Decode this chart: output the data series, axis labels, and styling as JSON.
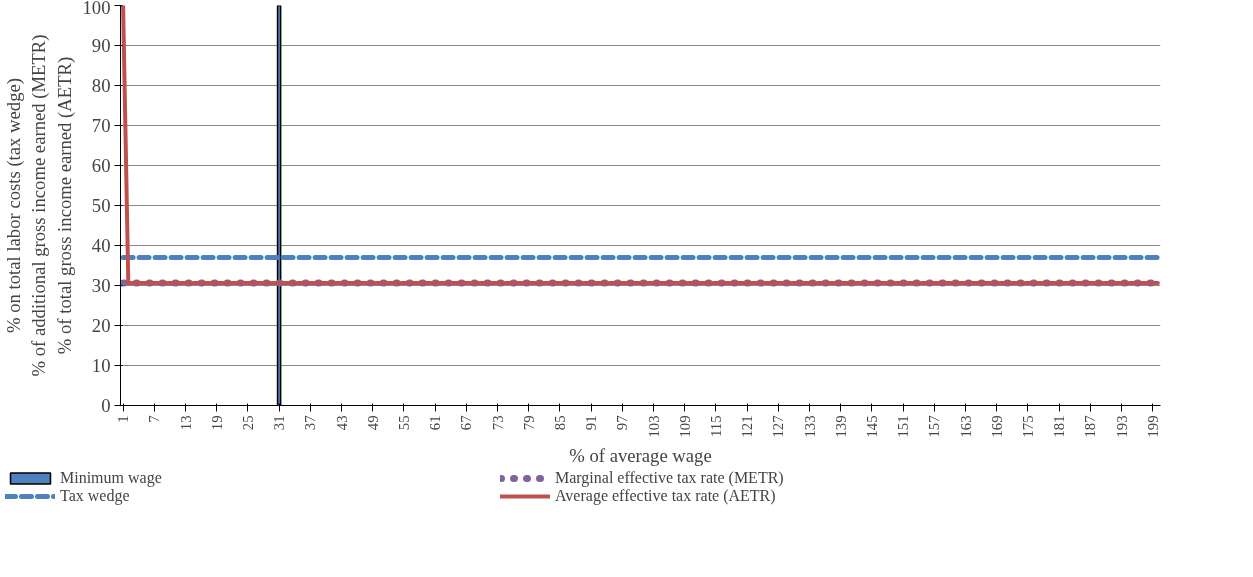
{
  "chart_data": {
    "type": "line",
    "xlabel": "% of average wage",
    "ylabel": "% on total labor costs (tax wedge)\n% of additional gross income earned (METR)\n% of total gross income earned (AETR)",
    "xlim": [
      0.5,
      200.5
    ],
    "xticks": [
      1,
      7,
      13,
      19,
      25,
      31,
      37,
      43,
      49,
      55,
      61,
      67,
      73,
      79,
      85,
      91,
      97,
      103,
      109,
      115,
      121,
      127,
      133,
      139,
      145,
      151,
      157,
      163,
      169,
      175,
      181,
      187,
      193,
      199
    ],
    "ylim": [
      0,
      100
    ],
    "yticks": [
      0,
      10,
      20,
      30,
      40,
      50,
      60,
      70,
      80,
      90,
      100
    ],
    "grid": "y",
    "legend": "bottom",
    "series": [
      {
        "name": "Minimum wage",
        "type": "bar",
        "color": "#4f81bd",
        "x": [
          31
        ],
        "values": [
          100
        ]
      },
      {
        "name": "Tax wedge",
        "line_style": "dashed",
        "color": "#4f81bd",
        "x": [
          1,
          200
        ],
        "values": [
          37,
          37
        ]
      },
      {
        "name": "Marginal effective tax rate (METR)",
        "line_style": "dotted",
        "color": "#8064a2",
        "x": [
          1,
          200
        ],
        "values": [
          30.6,
          30.6
        ]
      },
      {
        "name": "Average effective tax rate (AETR)",
        "line_style": "solid",
        "color": "#c0504d",
        "x": [
          1,
          2,
          200
        ],
        "values": [
          100,
          30.6,
          30.6
        ]
      }
    ]
  }
}
